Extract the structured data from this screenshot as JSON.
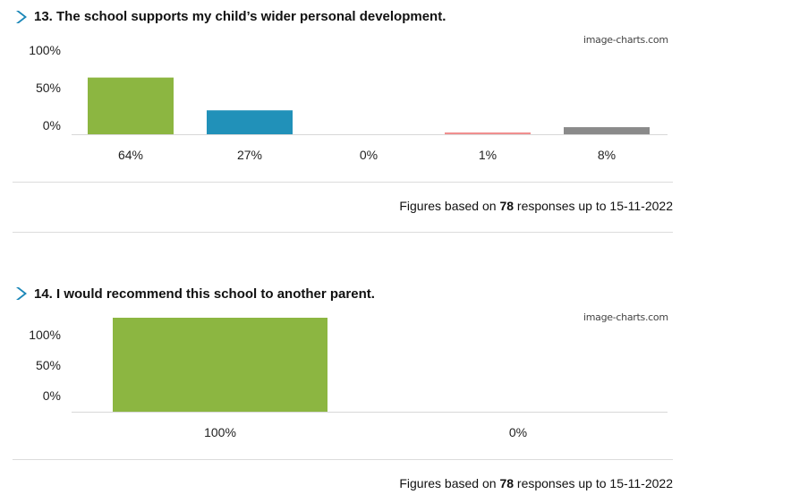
{
  "chart_data": [
    {
      "type": "bar",
      "title": "13. The school supports my child’s wider personal development.",
      "watermark": "image-charts.com",
      "yticks": [
        "100%",
        "50%",
        "0%"
      ],
      "ylim": [
        0,
        100
      ],
      "categories": [
        "64%",
        "27%",
        "0%",
        "1%",
        "8%"
      ],
      "values": [
        64,
        27,
        0,
        1,
        8
      ],
      "colors": [
        "#8cb641",
        "#2191b9",
        "#2191b9",
        "#f08f8f",
        "#8a8a8a"
      ],
      "figures": {
        "prefix": "Figures based on",
        "count": "78",
        "suffix": "responses up to 15-11-2022"
      }
    },
    {
      "type": "bar",
      "title": "14. I would recommend this school to another parent.",
      "watermark": "image-charts.com",
      "yticks": [
        "100%",
        "50%",
        "0%"
      ],
      "ylim": [
        0,
        100
      ],
      "categories": [
        "100%",
        "0%"
      ],
      "values": [
        100,
        0
      ],
      "colors": [
        "#8cb641",
        "#8cb641"
      ],
      "figures": {
        "prefix": "Figures based on",
        "count": "78",
        "suffix": "responses up to 15-11-2022"
      }
    }
  ]
}
